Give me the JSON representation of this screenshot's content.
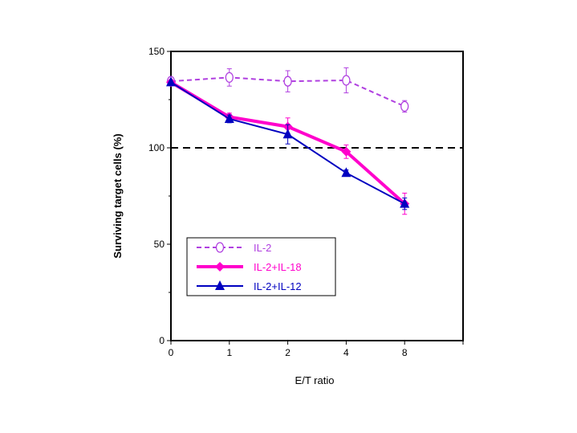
{
  "chart_data": {
    "type": "line",
    "title": "",
    "xlabel": "E/T ratio",
    "ylabel": "Surviving target cells (%)",
    "categories": [
      "0",
      "1",
      "2",
      "4",
      "8"
    ],
    "ylim": [
      0,
      150
    ],
    "yticks": [
      0,
      50,
      100,
      150
    ],
    "yminor": [
      25,
      75,
      125
    ],
    "reference_line": {
      "y": 100,
      "style": "dashed",
      "color": "#000000"
    },
    "grid": false,
    "legend_position": "bottom-left",
    "series": [
      {
        "name": "IL-2",
        "color": "#b040e0",
        "style": "dashed",
        "marker": "open-circle",
        "values": [
          134.5,
          136.5,
          134.5,
          135,
          121.5
        ],
        "errors": [
          1,
          4.5,
          5.5,
          6.5,
          3
        ]
      },
      {
        "name": "IL-2+IL-18",
        "color": "#ff00cc",
        "style": "solid-thick",
        "marker": "diamond",
        "values": [
          134,
          116,
          111,
          98,
          71
        ],
        "errors": [
          1,
          2,
          4.5,
          3.5,
          5.5
        ]
      },
      {
        "name": "IL-2+IL-12",
        "color": "#0000c0",
        "style": "solid",
        "marker": "triangle",
        "values": [
          134,
          115,
          107,
          87,
          71
        ],
        "errors": [
          1,
          2,
          5,
          1.5,
          3
        ]
      }
    ]
  }
}
